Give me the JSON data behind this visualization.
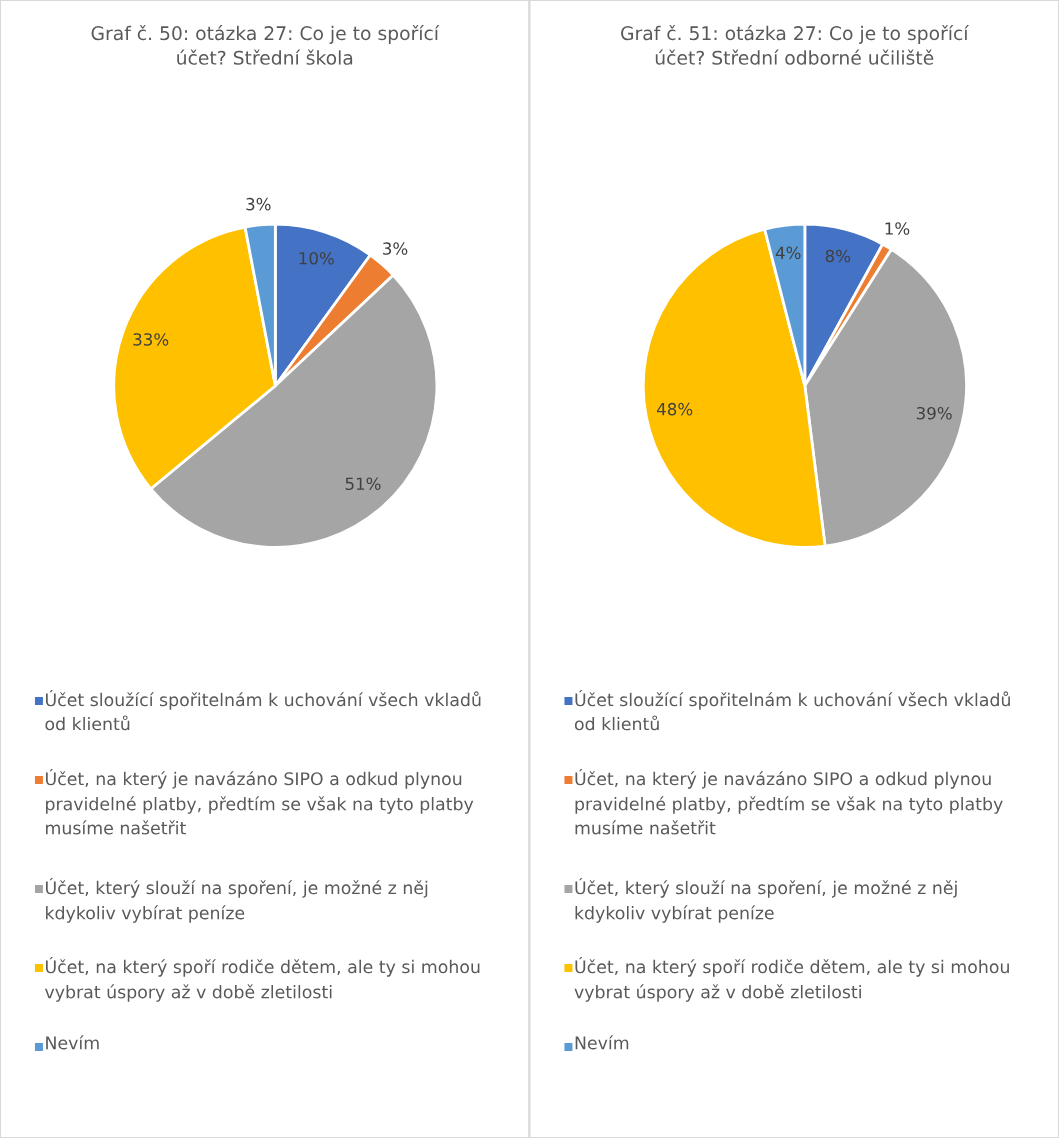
{
  "chart_data": [
    {
      "type": "pie",
      "title": "Graf č. 50: otázka 27: Co je to spořící účet? Střední škola",
      "categories": [
        "Účet sloužící spořitelnám k uchování všech vkladů od klientů",
        "Účet, na který je navázáno SIPO a odkud plynou pravidelné platby, předtím se však na tyto platby musíme našetřit",
        "Účet, který slouží na spoření, je možné z něj kdykoliv vybírat peníze",
        "Účet, na který spoří rodiče dětem, ale ty si mohou vybrat úspory až v době zletilosti",
        "Nevím"
      ],
      "values": [
        10,
        3,
        51,
        33,
        3
      ],
      "colors": [
        "#4472c4",
        "#ed7d31",
        "#a5a5a5",
        "#ffc000",
        "#5b9bd5"
      ],
      "value_labels": [
        "10%",
        "3%",
        "51%",
        "33%",
        "3%"
      ],
      "legend": "bottom"
    },
    {
      "type": "pie",
      "title": "Graf č. 51: otázka 27: Co je to spořící účet? Střední odborné učiliště",
      "categories": [
        "Účet sloužící spořitelnám k uchování všech vkladů od klientů",
        "Účet, na který je navázáno SIPO a odkud plynou pravidelné platby, předtím se však na tyto platby musíme našetřit",
        "Účet, který slouží na spoření, je možné z něj kdykoliv vybírat peníze",
        "Účet, na který spoří rodiče dětem, ale ty si mohou vybrat úspory až v době zletilosti",
        "Nevím"
      ],
      "values": [
        8,
        1,
        39,
        48,
        4
      ],
      "colors": [
        "#4472c4",
        "#ed7d31",
        "#a5a5a5",
        "#ffc000",
        "#5b9bd5"
      ],
      "value_labels": [
        "8%",
        "1%",
        "39%",
        "48%",
        "4%"
      ],
      "legend": "bottom"
    }
  ]
}
